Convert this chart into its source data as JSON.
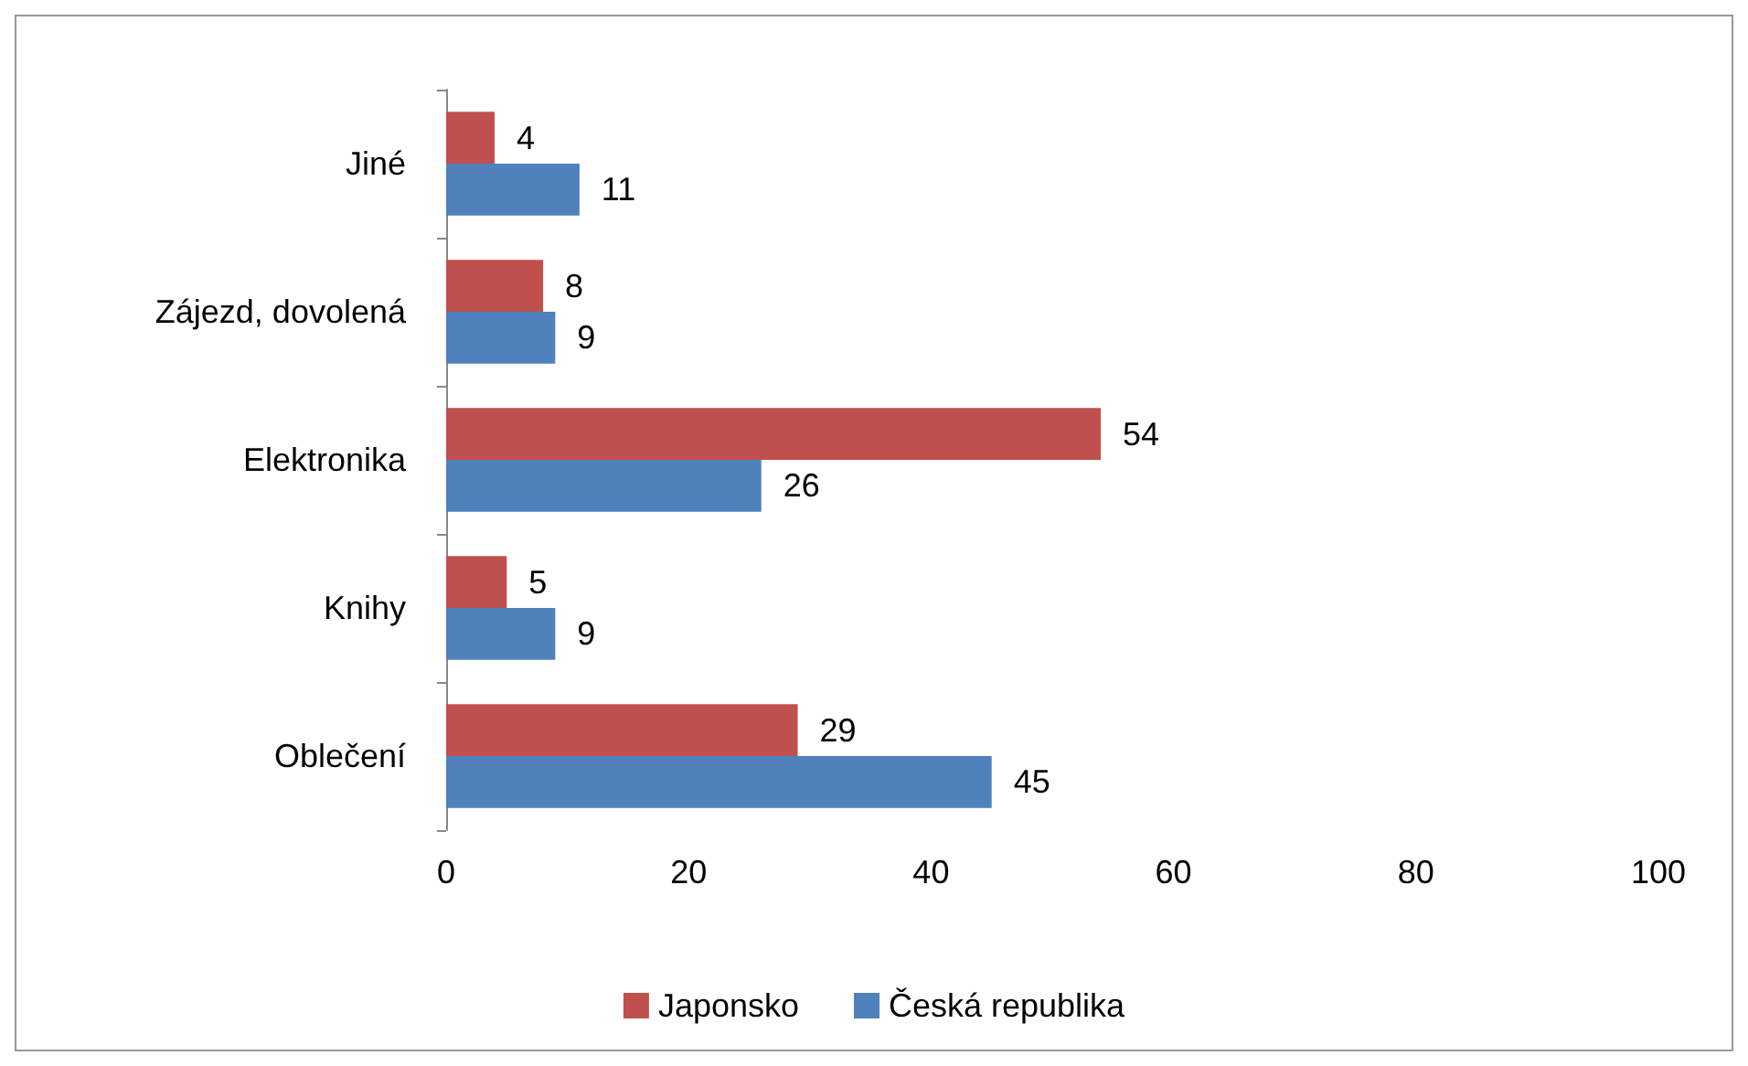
{
  "chart_data": {
    "type": "bar",
    "orientation": "horizontal",
    "categories": [
      "Jiné",
      "Zájezd, dovolená",
      "Elektronika",
      "Knihy",
      "Oblečení"
    ],
    "series": [
      {
        "name": "Japonsko",
        "color": "#c0504d",
        "values": [
          4,
          8,
          54,
          5,
          29
        ]
      },
      {
        "name": "Česká republika",
        "color": "#4f81bd",
        "values": [
          11,
          9,
          26,
          9,
          45
        ]
      }
    ],
    "xlim": [
      0,
      100
    ],
    "xticks": [
      0,
      20,
      40,
      60,
      80,
      100
    ],
    "grid": false,
    "legend": "bottom",
    "data_labels": true
  }
}
